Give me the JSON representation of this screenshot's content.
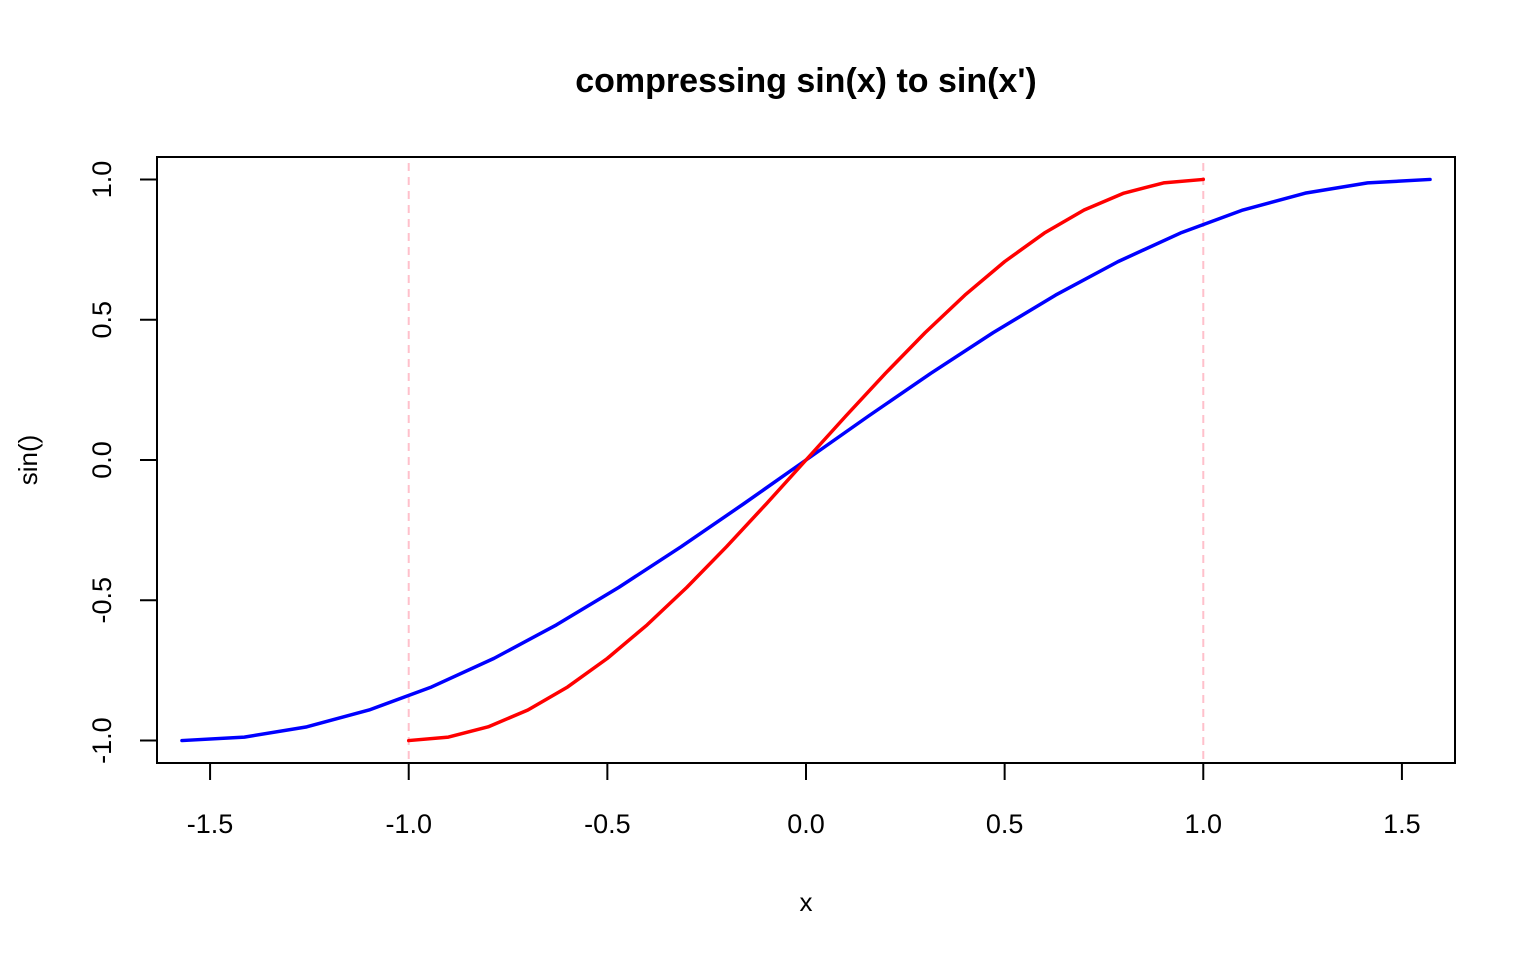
{
  "chart_data": {
    "type": "line",
    "title": "compressing sin(x) to sin(x')",
    "xlabel": "x",
    "ylabel": "sin()",
    "xlim": [
      -1.6336,
      1.6336
    ],
    "ylim": [
      -1.08,
      1.08
    ],
    "x_ticks": [
      -1.5,
      -1.0,
      -0.5,
      0.0,
      0.5,
      1.0,
      1.5
    ],
    "x_tick_labels": [
      "-1.5",
      "-1.0",
      "-0.5",
      "0.0",
      "0.5",
      "1.0",
      "1.5"
    ],
    "y_ticks": [
      -1.0,
      -0.5,
      0.0,
      0.5,
      1.0
    ],
    "y_tick_labels": [
      "-1.0",
      "-0.5",
      "0.0",
      "0.5",
      "1.0"
    ],
    "grid": false,
    "legend": "none",
    "vertical_lines": [
      {
        "x": -1.0,
        "color": "#ffc0cb",
        "style": "dashed"
      },
      {
        "x": 1.0,
        "color": "#ffc0cb",
        "style": "dashed"
      }
    ],
    "series": [
      {
        "color": "#0000ff",
        "x": [
          -1.5708,
          -1.4137,
          -1.2566,
          -1.0996,
          -0.9425,
          -0.7854,
          -0.6283,
          -0.4712,
          -0.3142,
          -0.1571,
          0.0,
          0.1571,
          0.3142,
          0.4712,
          0.6283,
          0.7854,
          0.9425,
          1.0996,
          1.2566,
          1.4137,
          1.5708
        ],
        "y": [
          -1.0,
          -0.9877,
          -0.9511,
          -0.891,
          -0.809,
          -0.7071,
          -0.5878,
          -0.454,
          -0.309,
          -0.1564,
          0.0,
          0.1564,
          0.309,
          0.454,
          0.5878,
          0.7071,
          0.809,
          0.891,
          0.9511,
          0.9877,
          1.0
        ]
      },
      {
        "color": "#ff0000",
        "x": [
          -1.0,
          -0.9,
          -0.8,
          -0.7,
          -0.6,
          -0.5,
          -0.4,
          -0.3,
          -0.2,
          -0.1,
          0.0,
          0.1,
          0.2,
          0.3,
          0.4,
          0.5,
          0.6,
          0.7,
          0.8,
          0.9,
          1.0
        ],
        "y": [
          -1.0,
          -0.9877,
          -0.9511,
          -0.891,
          -0.809,
          -0.7071,
          -0.5878,
          -0.454,
          -0.309,
          -0.1564,
          0.0,
          0.1564,
          0.309,
          0.454,
          0.5878,
          0.7071,
          0.809,
          0.891,
          0.9511,
          0.9877,
          1.0
        ]
      }
    ]
  }
}
